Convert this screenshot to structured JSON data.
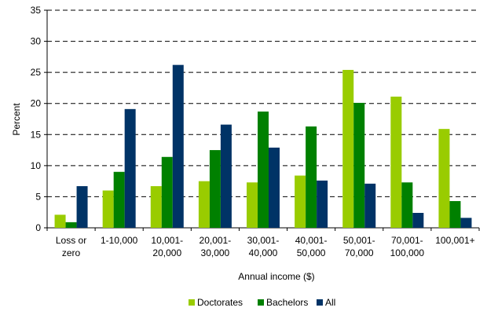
{
  "chart_data": {
    "type": "bar",
    "categories": [
      "Loss or\nzero",
      "1-10,000",
      "10,001-\n20,000",
      "20,001-\n30,000",
      "30,001-\n40,000",
      "40,001-\n50,000",
      "50,001-\n70,000",
      "70,001-\n100,000",
      "100,001+"
    ],
    "series": [
      {
        "name": "Doctorates",
        "color": "#99cc00",
        "values": [
          2.1,
          6.0,
          6.7,
          7.5,
          7.3,
          8.4,
          25.4,
          21.1,
          15.9
        ]
      },
      {
        "name": "Bachelors",
        "color": "#008000",
        "values": [
          0.9,
          9.0,
          11.4,
          12.5,
          18.7,
          16.3,
          20.1,
          7.3,
          4.3
        ]
      },
      {
        "name": "All",
        "color": "#003366",
        "values": [
          6.7,
          19.1,
          26.2,
          16.6,
          12.9,
          7.6,
          7.1,
          2.4,
          1.6
        ]
      }
    ],
    "xlabel": "Annual income ($)",
    "ylabel": "Percent",
    "ylim": [
      0,
      35
    ],
    "yticks": [
      0,
      5,
      10,
      15,
      20,
      25,
      30,
      35
    ],
    "grid": true,
    "legend": "bottom"
  }
}
